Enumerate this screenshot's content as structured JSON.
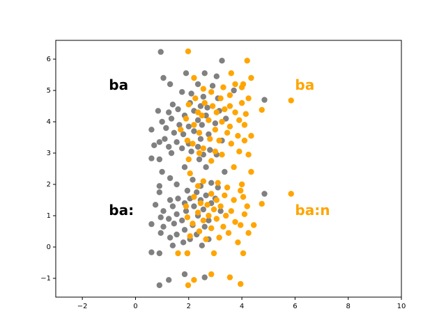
{
  "chart_data": {
    "type": "scatter",
    "title": "",
    "xlabel": "",
    "ylabel": "",
    "xlim": [
      -3,
      10
    ],
    "ylim": [
      -1.6,
      6.6
    ],
    "xticks": [
      -2,
      0,
      2,
      4,
      6,
      8,
      10
    ],
    "yticks": [
      -1,
      0,
      1,
      2,
      3,
      4,
      5,
      6
    ],
    "xtick_labels": [
      "−2",
      "0",
      "2",
      "4",
      "6",
      "8",
      "10"
    ],
    "ytick_labels": [
      "−1",
      "0",
      "1",
      "2",
      "3",
      "4",
      "5",
      "6"
    ],
    "grid": false,
    "series": [
      {
        "color": "#808080",
        "points": [
          [
            0.95,
            6.23
          ],
          [
            3.25,
            5.95
          ],
          [
            1.05,
            5.4
          ],
          [
            1.9,
            5.55
          ],
          [
            2.6,
            5.55
          ],
          [
            3.05,
            5.45
          ],
          [
            1.3,
            5.2
          ],
          [
            2.35,
            5.2
          ],
          [
            2.9,
            5.15
          ],
          [
            1.75,
            4.95
          ],
          [
            2.1,
            4.9
          ],
          [
            3.7,
            5.0
          ],
          [
            2.55,
            4.8
          ],
          [
            3.1,
            4.75
          ],
          [
            4.85,
            4.7
          ],
          [
            1.4,
            4.55
          ],
          [
            2.05,
            4.6
          ],
          [
            2.45,
            4.5
          ],
          [
            2.7,
            4.45
          ],
          [
            1.25,
            4.3
          ],
          [
            1.6,
            4.4
          ],
          [
            2.2,
            4.35
          ],
          [
            0.85,
            4.35
          ],
          [
            1.85,
            4.2
          ],
          [
            2.65,
            4.2
          ],
          [
            3.15,
            4.35
          ],
          [
            1.35,
            4.1
          ],
          [
            2.35,
            4.05
          ],
          [
            1.0,
            4.0
          ],
          [
            3.4,
            4.1
          ],
          [
            1.65,
            3.9
          ],
          [
            1.15,
            3.8
          ],
          [
            2.0,
            3.85
          ],
          [
            2.5,
            3.9
          ],
          [
            3.0,
            3.95
          ],
          [
            0.6,
            3.75
          ],
          [
            1.45,
            3.65
          ],
          [
            2.2,
            3.7
          ],
          [
            1.8,
            3.6
          ],
          [
            2.75,
            3.6
          ],
          [
            1.1,
            3.45
          ],
          [
            2.45,
            3.45
          ],
          [
            0.9,
            3.35
          ],
          [
            1.55,
            3.35
          ],
          [
            2.0,
            3.3
          ],
          [
            3.25,
            3.4
          ],
          [
            1.25,
            3.2
          ],
          [
            2.35,
            3.2
          ],
          [
            1.75,
            3.15
          ],
          [
            0.7,
            3.25
          ],
          [
            2.8,
            3.1
          ],
          [
            1.35,
            3.0
          ],
          [
            2.1,
            3.05
          ],
          [
            2.55,
            2.95
          ],
          [
            3.05,
            2.95
          ],
          [
            0.6,
            2.83
          ],
          [
            0.9,
            2.8
          ],
          [
            2.4,
            2.8
          ],
          [
            1.85,
            2.55
          ],
          [
            2.65,
            2.55
          ],
          [
            3.35,
            2.4
          ],
          [
            1.0,
            2.4
          ],
          [
            1.3,
            2.2
          ],
          [
            2.15,
            2.15
          ],
          [
            2.85,
            2.05
          ],
          [
            1.55,
            2.0
          ],
          [
            0.9,
            1.95
          ],
          [
            2.45,
            1.95
          ],
          [
            3.1,
            1.9
          ],
          [
            1.95,
            1.8
          ],
          [
            0.9,
            1.75
          ],
          [
            2.3,
            1.75
          ],
          [
            4.85,
            1.7
          ],
          [
            2.65,
            1.65
          ],
          [
            1.6,
            1.55
          ],
          [
            2.05,
            1.55
          ],
          [
            1.3,
            1.5
          ],
          [
            2.45,
            1.5
          ],
          [
            3.0,
            1.55
          ],
          [
            1.85,
            1.4
          ],
          [
            2.85,
            1.4
          ],
          [
            0.75,
            1.35
          ],
          [
            1.4,
            1.3
          ],
          [
            2.2,
            1.3
          ],
          [
            1.05,
            1.15
          ],
          [
            1.9,
            1.15
          ],
          [
            2.55,
            1.2
          ],
          [
            3.2,
            1.15
          ],
          [
            1.55,
            1.05
          ],
          [
            2.35,
            1.0
          ],
          [
            0.95,
            0.95
          ],
          [
            1.25,
            0.9
          ],
          [
            1.75,
            0.85
          ],
          [
            2.75,
            0.85
          ],
          [
            1.45,
            0.75
          ],
          [
            2.15,
            0.7
          ],
          [
            0.6,
            0.73
          ],
          [
            1.05,
            0.65
          ],
          [
            2.6,
            0.65
          ],
          [
            1.85,
            0.55
          ],
          [
            0.95,
            0.45
          ],
          [
            1.55,
            0.4
          ],
          [
            2.3,
            0.4
          ],
          [
            1.3,
            0.3
          ],
          [
            2.05,
            0.25
          ],
          [
            2.75,
            0.25
          ],
          [
            1.8,
            0.15
          ],
          [
            1.4,
            0.05
          ],
          [
            2.5,
            0.05
          ],
          [
            0.6,
            -0.17
          ],
          [
            0.9,
            -0.2
          ],
          [
            1.95,
            -0.2
          ],
          [
            1.85,
            -0.87
          ],
          [
            2.6,
            -0.97
          ],
          [
            1.25,
            -1.05
          ],
          [
            0.9,
            -1.22
          ]
        ]
      },
      {
        "color": "#ffa500",
        "points": [
          [
            1.98,
            6.25
          ],
          [
            4.2,
            5.95
          ],
          [
            2.2,
            5.4
          ],
          [
            3.6,
            5.55
          ],
          [
            4.35,
            5.4
          ],
          [
            3.75,
            5.2
          ],
          [
            2.55,
            5.05
          ],
          [
            3.3,
            5.1
          ],
          [
            4.0,
            5.1
          ],
          [
            2.85,
            4.95
          ],
          [
            4.05,
            5.2
          ],
          [
            3.55,
            4.85
          ],
          [
            2.25,
            4.75
          ],
          [
            2.6,
            4.6
          ],
          [
            3.2,
            4.75
          ],
          [
            4.25,
            4.75
          ],
          [
            5.85,
            4.68
          ],
          [
            2.0,
            4.55
          ],
          [
            2.9,
            4.5
          ],
          [
            3.55,
            4.5
          ],
          [
            4.0,
            4.6
          ],
          [
            2.35,
            4.3
          ],
          [
            3.05,
            4.3
          ],
          [
            3.35,
            4.4
          ],
          [
            4.75,
            4.38
          ],
          [
            2.5,
            4.2
          ],
          [
            3.75,
            4.3
          ],
          [
            4.15,
            4.25
          ],
          [
            1.9,
            4.1
          ],
          [
            2.75,
            4.05
          ],
          [
            3.25,
            4.0
          ],
          [
            3.9,
            4.05
          ],
          [
            2.2,
            3.9
          ],
          [
            3.55,
            3.85
          ],
          [
            4.1,
            3.9
          ],
          [
            1.7,
            3.75
          ],
          [
            3.0,
            3.75
          ],
          [
            2.4,
            3.65
          ],
          [
            3.45,
            3.65
          ],
          [
            3.85,
            3.55
          ],
          [
            4.35,
            3.55
          ],
          [
            1.95,
            3.4
          ],
          [
            2.8,
            3.45
          ],
          [
            3.15,
            3.4
          ],
          [
            4.1,
            3.4
          ],
          [
            2.15,
            3.3
          ],
          [
            3.6,
            3.3
          ],
          [
            2.55,
            3.15
          ],
          [
            3.0,
            3.05
          ],
          [
            3.9,
            3.05
          ],
          [
            4.25,
            2.95
          ],
          [
            2.4,
            3.0
          ],
          [
            3.25,
            2.95
          ],
          [
            2.0,
            2.8
          ],
          [
            2.85,
            2.75
          ],
          [
            3.7,
            2.55
          ],
          [
            4.35,
            2.4
          ],
          [
            2.05,
            2.35
          ],
          [
            2.55,
            2.1
          ],
          [
            3.1,
            2.05
          ],
          [
            4.0,
            2.0
          ],
          [
            3.45,
            1.9
          ],
          [
            2.35,
            1.95
          ],
          [
            3.95,
            1.8
          ],
          [
            2.85,
            1.7
          ],
          [
            3.35,
            1.65
          ],
          [
            5.85,
            1.7
          ],
          [
            2.2,
            1.6
          ],
          [
            4.05,
            1.6
          ],
          [
            3.05,
            1.5
          ],
          [
            3.7,
            1.5
          ],
          [
            2.45,
            1.4
          ],
          [
            4.75,
            1.38
          ],
          [
            4.2,
            1.3
          ],
          [
            2.7,
            1.35
          ],
          [
            3.2,
            1.3
          ],
          [
            1.9,
            1.3
          ],
          [
            2.95,
            1.2
          ],
          [
            3.6,
            1.15
          ],
          [
            2.35,
            1.1
          ],
          [
            4.1,
            1.05
          ],
          [
            2.75,
            1.0
          ],
          [
            3.4,
            1.0
          ],
          [
            1.95,
            0.95
          ],
          [
            3.05,
            0.9
          ],
          [
            2.55,
            0.85
          ],
          [
            3.75,
            0.8
          ],
          [
            2.15,
            0.75
          ],
          [
            4.45,
            0.7
          ],
          [
            3.3,
            0.65
          ],
          [
            3.95,
            0.7
          ],
          [
            2.85,
            0.6
          ],
          [
            2.4,
            0.5
          ],
          [
            3.5,
            0.45
          ],
          [
            4.25,
            0.45
          ],
          [
            2.05,
            0.35
          ],
          [
            3.15,
            0.3
          ],
          [
            2.65,
            0.25
          ],
          [
            3.85,
            0.15
          ],
          [
            1.6,
            -0.2
          ],
          [
            1.95,
            -0.2
          ],
          [
            2.95,
            -0.2
          ],
          [
            4.05,
            -0.2
          ],
          [
            3.55,
            -0.97
          ],
          [
            2.85,
            -0.87
          ],
          [
            2.2,
            -1.05
          ],
          [
            3.95,
            -1.18
          ],
          [
            1.98,
            -1.22
          ]
        ]
      }
    ],
    "annotations": [
      {
        "text": "ba",
        "x": -1.0,
        "y": 5.15,
        "color": "#000000"
      },
      {
        "text": "ba:",
        "x": -1.0,
        "y": 1.15,
        "color": "#000000"
      },
      {
        "text": "ba",
        "x": 6.0,
        "y": 5.15,
        "color": "#ffa500"
      },
      {
        "text": "ba:n",
        "x": 6.0,
        "y": 1.15,
        "color": "#ffa500"
      }
    ]
  }
}
